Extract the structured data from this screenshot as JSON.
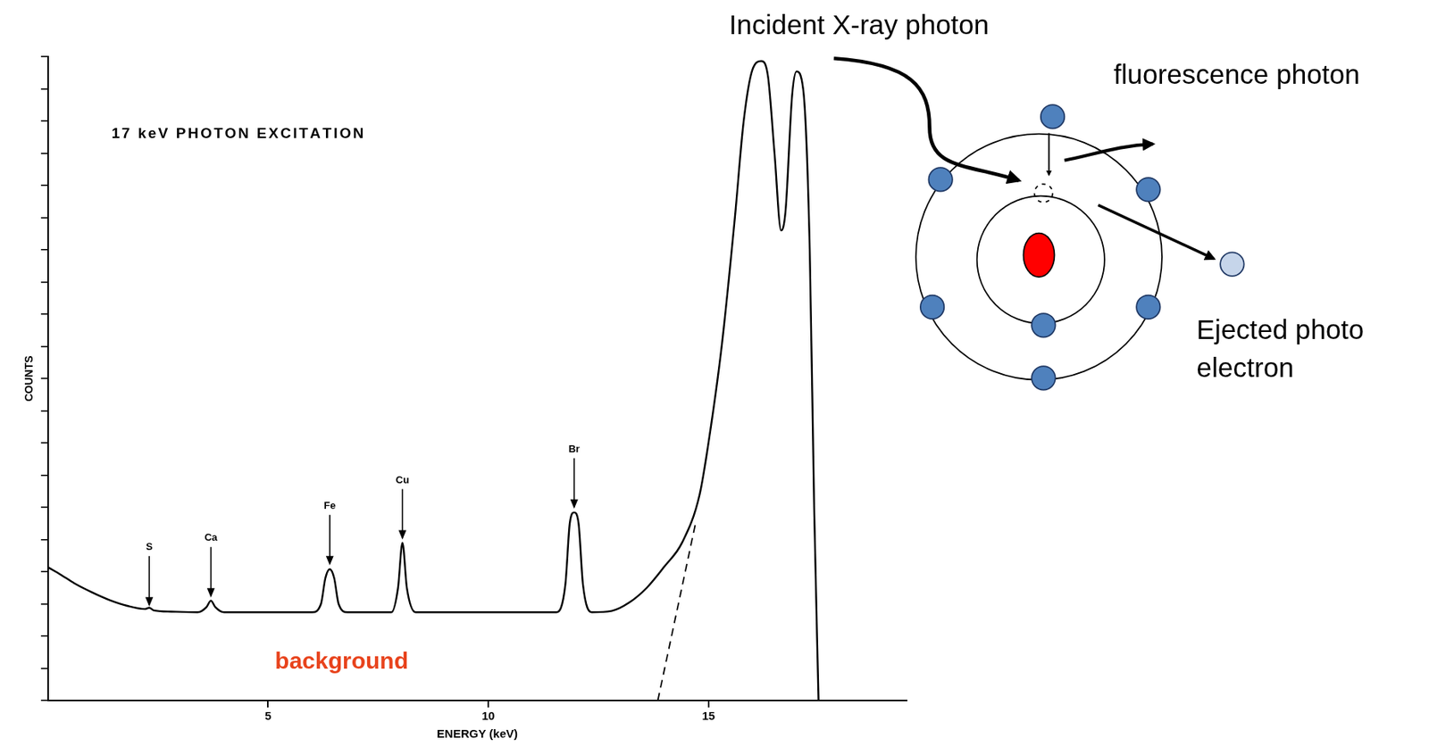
{
  "chart_data": {
    "type": "line",
    "title": "17 keV PHOTON EXCITATION",
    "xlabel": "ENERGY (keV)",
    "ylabel": "COUNTS",
    "xlim": [
      0,
      19.5
    ],
    "xticks": [
      5,
      10,
      15
    ],
    "ylim": [
      0,
      100
    ],
    "yticks": [
      0,
      5,
      10,
      15,
      20,
      25,
      30,
      35,
      40,
      45,
      50,
      55,
      60,
      65,
      70,
      75,
      80,
      85,
      90,
      95,
      100
    ],
    "grid": false,
    "tick_labels": "x",
    "series": [
      {
        "color": "#000000",
        "line_style": "solid",
        "x": [
          0,
          0.3,
          0.6,
          1.0,
          1.4,
          1.8,
          2.2,
          2.3,
          2.4,
          2.8,
          3.4,
          3.6,
          3.7,
          3.8,
          4.0,
          5.0,
          6.0,
          6.2,
          6.3,
          6.4,
          6.5,
          6.6,
          6.8,
          7.8,
          7.95,
          8.05,
          8.15,
          8.35,
          11.55,
          11.75,
          11.85,
          11.95,
          12.05,
          12.15,
          12.35,
          12.8,
          13.2,
          13.6,
          14.0,
          14.4,
          14.8,
          15.0,
          15.3,
          15.6,
          15.8,
          16.0,
          16.2,
          16.35,
          16.5,
          16.65,
          16.75,
          16.9,
          17.0,
          17.15,
          17.3,
          17.4,
          17.5
        ],
        "values": [
          20.7,
          19.5,
          18.2,
          16.8,
          15.6,
          14.7,
          14.2,
          14.4,
          14.0,
          13.8,
          13.7,
          14.5,
          15.5,
          14.5,
          13.7,
          13.7,
          13.7,
          15.0,
          19.0,
          20.4,
          19.0,
          15.0,
          13.7,
          13.7,
          17.5,
          24.5,
          17.5,
          13.7,
          13.7,
          18.0,
          27.5,
          29.2,
          27.5,
          18.0,
          13.7,
          13.9,
          15.2,
          17.5,
          20.8,
          24.5,
          32.0,
          40.0,
          55.0,
          75.0,
          90.0,
          98.0,
          99.3,
          97.0,
          85.0,
          73.0,
          76.0,
          94.0,
          97.7,
          95.0,
          70.0,
          30.0,
          0
        ]
      },
      {
        "color": "#000000",
        "line_style": "dashed",
        "x": [
          13.85,
          14.7
        ],
        "values": [
          0,
          27.3
        ]
      }
    ],
    "annotations": [
      {
        "text": "S",
        "x": 2.3,
        "y": 14.6,
        "marker": "arrow"
      },
      {
        "text": "Ca",
        "x": 3.7,
        "y": 16.0,
        "marker": "arrow"
      },
      {
        "text": "Fe",
        "x": 6.4,
        "y": 21.0,
        "marker": "arrow"
      },
      {
        "text": "Cu",
        "x": 8.05,
        "y": 25.0,
        "marker": "arrow"
      },
      {
        "text": "Br",
        "x": 11.95,
        "y": 29.8,
        "marker": "arrow"
      },
      {
        "text": "background",
        "x": 6.67,
        "y": 5.9,
        "color": "#e8431c"
      }
    ]
  },
  "diagram": {
    "incident": "Incident X-ray photon",
    "fluorescence": "fluorescence photon",
    "ejected": "Ejected photo electron"
  }
}
